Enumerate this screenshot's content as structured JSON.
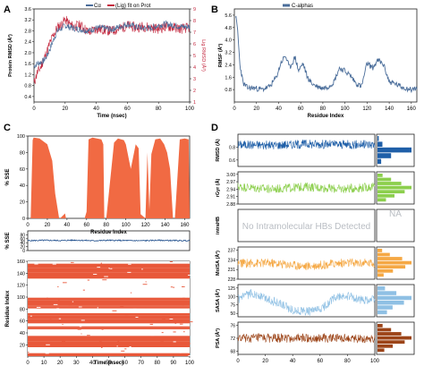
{
  "figure": {
    "panels": {
      "A": "A",
      "B": "B",
      "C": "C",
      "D": "D"
    }
  },
  "chart_data": [
    {
      "id": "A",
      "type": "line",
      "title": "",
      "xlabel": "Time (nsec)",
      "ylabel": "Protein RMSD (Å²)",
      "ylabel_right": "Lig RMSD (Å²)",
      "xlim": [
        0,
        100
      ],
      "ylim": [
        0.2,
        3.6
      ],
      "ylim_right": [
        1,
        9
      ],
      "xticks": [
        "0",
        "20",
        "40",
        "60",
        "80",
        "100"
      ],
      "yticks": [
        "0.4",
        "0.8",
        "1.2",
        "1.6",
        "2.0",
        "2.4",
        "2.8",
        "3.2",
        "3.6"
      ],
      "yticks_right": [
        "1",
        "2",
        "3",
        "4",
        "5",
        "6",
        "7",
        "8",
        "9"
      ],
      "legend": [
        "Cα",
        "(Lig) fit on Prot"
      ],
      "legend_position": "top",
      "colors": {
        "ca": "#4a6d9a",
        "lig": "#c4283f"
      },
      "series": [
        {
          "name": "Cα",
          "axis": "left",
          "x": [
            0,
            2,
            4,
            6,
            8,
            10,
            12,
            15,
            18,
            20,
            22,
            25,
            30,
            35,
            40,
            45,
            50,
            55,
            60,
            65,
            70,
            75,
            80,
            85,
            90,
            95,
            100
          ],
          "values": [
            1.5,
            1.6,
            1.65,
            1.7,
            1.85,
            2.1,
            2.4,
            2.8,
            2.9,
            3.0,
            2.95,
            2.9,
            2.85,
            2.8,
            2.9,
            2.9,
            2.85,
            2.95,
            3.05,
            2.95,
            2.9,
            2.9,
            3.0,
            3.05,
            3.0,
            2.95,
            2.95
          ]
        },
        {
          "name": "(Lig) fit on Prot",
          "axis": "right",
          "x": [
            0,
            2,
            4,
            6,
            8,
            10,
            12,
            15,
            18,
            20,
            22,
            25,
            30,
            35,
            40,
            45,
            50,
            55,
            60,
            65,
            70,
            75,
            80,
            85,
            90,
            95,
            100
          ],
          "values": [
            2.6,
            3.5,
            3.9,
            4.6,
            5.2,
            6.0,
            6.6,
            7.4,
            7.7,
            8.1,
            7.8,
            7.5,
            7.6,
            7.0,
            7.3,
            7.2,
            7.1,
            7.3,
            7.6,
            7.4,
            7.5,
            7.4,
            7.3,
            7.5,
            7.4,
            7.3,
            7.4
          ]
        }
      ]
    },
    {
      "id": "B",
      "type": "line",
      "title": "",
      "xlabel": "Residue Index",
      "ylabel": "RMSF (Å²)",
      "xlim": [
        0,
        165
      ],
      "ylim": [
        0,
        6
      ],
      "xticks": [
        "0",
        "20",
        "40",
        "60",
        "80",
        "100",
        "120",
        "140",
        "160"
      ],
      "yticks": [
        "0.8",
        "1.6",
        "2.4",
        "3.2",
        "4.0",
        "4.8",
        "5.6"
      ],
      "legend": [
        "C-alphas"
      ],
      "legend_position": "top",
      "colors": {
        "line": "#4a6d9a"
      },
      "series": [
        {
          "name": "C-alphas",
          "x": [
            1,
            3,
            5,
            8,
            12,
            18,
            25,
            32,
            38,
            42,
            46,
            50,
            55,
            58,
            62,
            66,
            70,
            75,
            80,
            85,
            90,
            95,
            100,
            105,
            110,
            115,
            120,
            125,
            130,
            135,
            140,
            145,
            150,
            155,
            160,
            165
          ],
          "values": [
            5.6,
            4.6,
            2.4,
            1.2,
            0.9,
            0.9,
            0.8,
            1.0,
            1.6,
            2.5,
            3.0,
            2.2,
            2.9,
            2.0,
            2.5,
            1.6,
            1.2,
            1.0,
            0.9,
            1.0,
            1.3,
            2.2,
            2.0,
            1.7,
            1.2,
            1.0,
            2.5,
            2.2,
            2.7,
            2.4,
            1.3,
            1.2,
            1.0,
            0.9,
            0.8,
            0.9
          ]
        }
      ]
    },
    {
      "id": "C-top",
      "type": "area",
      "title": "",
      "xlabel": "Residue Index",
      "ylabel": "% SSE",
      "xlim": [
        0,
        165
      ],
      "ylim": [
        0,
        100
      ],
      "xticks": [
        "0",
        "20",
        "40",
        "60",
        "80",
        "100",
        "120",
        "140",
        "160"
      ],
      "yticks": [
        "0",
        "20",
        "40",
        "60",
        "80",
        "100"
      ],
      "colors": {
        "fill": "#f16a43"
      },
      "series": [
        {
          "name": "",
          "x": [
            0,
            3,
            5,
            6,
            12,
            20,
            25,
            28,
            32,
            33,
            38,
            39,
            58,
            60,
            62,
            66,
            75,
            77,
            78,
            80,
            88,
            92,
            98,
            100,
            105,
            110,
            113,
            115,
            120,
            122,
            124,
            126,
            130,
            135,
            139,
            142,
            145,
            148,
            150,
            155,
            160,
            164,
            165
          ],
          "values": [
            0,
            0,
            95,
            98,
            97,
            90,
            70,
            30,
            0,
            0,
            6,
            0,
            0,
            8,
            96,
            98,
            96,
            90,
            0,
            0,
            92,
            97,
            95,
            90,
            60,
            90,
            85,
            5,
            0,
            80,
            10,
            78,
            96,
            97,
            90,
            80,
            60,
            0,
            0,
            96,
            97,
            96,
            0
          ]
        }
      ]
    },
    {
      "id": "C-mid",
      "type": "line",
      "title": "",
      "xlabel": "",
      "ylabel": "% SSE",
      "xlim": [
        0,
        100
      ],
      "ylim": [
        0,
        100
      ],
      "yticks": [
        "0",
        "20",
        "40",
        "60",
        "80"
      ],
      "colors": {
        "line": "#1f4e8c"
      },
      "series": [
        {
          "name": "",
          "x": [
            0,
            10,
            20,
            30,
            40,
            50,
            60,
            70,
            80,
            90,
            100
          ],
          "values": [
            50,
            52,
            51,
            53,
            50,
            52,
            51,
            50,
            52,
            51,
            50
          ]
        }
      ]
    },
    {
      "id": "C-bottom",
      "type": "heatmap",
      "title": "",
      "xlabel": "Time (nsec)",
      "ylabel": "Residue Index",
      "xlim": [
        0,
        100
      ],
      "ylim": [
        1,
        160
      ],
      "xticks": [
        "0",
        "10",
        "20",
        "30",
        "40",
        "50",
        "60",
        "70",
        "80",
        "90",
        "100"
      ],
      "yticks": [
        "20",
        "40",
        "60",
        "80",
        "100",
        "120",
        "140",
        "160"
      ],
      "colors": {
        "ssu": "#e8583a",
        "bg": "#ffffff"
      },
      "series": [
        {
          "name": "",
          "x": [
            2,
            5,
            12,
            20,
            25,
            30,
            38,
            40,
            58,
            62,
            66,
            75,
            77,
            80,
            88,
            92,
            98,
            100,
            105,
            110,
            113,
            115,
            120,
            126,
            130,
            135,
            139,
            145,
            150,
            155,
            160
          ],
          "values": [
            0,
            1,
            1,
            1,
            1,
            0,
            0,
            0,
            0,
            1,
            1,
            1,
            1,
            0,
            1,
            1,
            1,
            1,
            0,
            1,
            1,
            0,
            0,
            1,
            1,
            1,
            1,
            0,
            0,
            1,
            1
          ]
        }
      ]
    },
    {
      "id": "D-rmsd",
      "type": "line",
      "ylabel": "RMSD (Å)",
      "xlim": [
        0,
        100
      ],
      "ylim": [
        0.5,
        1.0
      ],
      "yticks": [
        "0.6",
        "0.8"
      ],
      "colors": {
        "line": "#1f5fa8"
      },
      "series": [
        {
          "name": "",
          "x": [
            0,
            25,
            50,
            75,
            100
          ],
          "values": [
            0.84,
            0.83,
            0.85,
            0.84,
            0.84
          ]
        }
      ],
      "histogram": [
        2,
        8,
        55,
        22,
        6
      ]
    },
    {
      "id": "D-rgyr",
      "type": "line",
      "ylabel": "rGyr (Å)",
      "xlim": [
        0,
        100
      ],
      "ylim": [
        2.88,
        3.01
      ],
      "yticks": [
        "2.88",
        "2.91",
        "2.94",
        "2.97",
        "3.00"
      ],
      "colors": {
        "line": "#8ccf4d"
      },
      "series": [
        {
          "name": "",
          "x": [
            0,
            25,
            50,
            75,
            100
          ],
          "values": [
            2.95,
            2.94,
            2.95,
            2.94,
            2.95
          ]
        }
      ],
      "histogram": [
        3,
        8,
        14,
        20,
        16,
        10,
        5
      ]
    },
    {
      "id": "D-intrahb",
      "type": "line",
      "ylabel": "intraHB",
      "annotation": "No Intramolecular HBs Detected",
      "side_annotation": "NA",
      "series": []
    },
    {
      "id": "D-molsa",
      "type": "line",
      "ylabel": "MolSA (Å²)",
      "xlim": [
        0,
        100
      ],
      "ylim": [
        228,
        238
      ],
      "yticks": [
        "228",
        "231",
        "234",
        "237"
      ],
      "colors": {
        "line": "#f5a844"
      },
      "series": [
        {
          "name": "",
          "x": [
            0,
            25,
            50,
            75,
            100
          ],
          "values": [
            233,
            233,
            232,
            233,
            233
          ]
        }
      ],
      "histogram": [
        3,
        8,
        16,
        22,
        18,
        10,
        4
      ]
    },
    {
      "id": "D-sasa",
      "type": "line",
      "ylabel": "SASA (Å²)",
      "xlim": [
        0,
        100
      ],
      "ylim": [
        40,
        135
      ],
      "yticks": [
        "50",
        "75",
        "100",
        "125"
      ],
      "colors": {
        "line": "#8fc0e4"
      },
      "series": [
        {
          "name": "",
          "x": [
            0,
            10,
            20,
            30,
            40,
            50,
            60,
            70,
            80,
            90,
            100
          ],
          "values": [
            90,
            110,
            95,
            80,
            60,
            55,
            60,
            95,
            100,
            90,
            92
          ]
        }
      ],
      "histogram": [
        4,
        10,
        18,
        14,
        8,
        5
      ]
    },
    {
      "id": "D-psa",
      "type": "line",
      "ylabel": "PSA (Å²)",
      "xlim": [
        0,
        100
      ],
      "ylim": [
        67,
        77
      ],
      "yticks": [
        "68",
        "72",
        "76"
      ],
      "colors": {
        "line": "#9c4418"
      },
      "series": [
        {
          "name": "",
          "x": [
            0,
            25,
            50,
            75,
            100
          ],
          "values": [
            72,
            72,
            72,
            72,
            72
          ]
        }
      ],
      "histogram": [
        3,
        8,
        14,
        20,
        16,
        9,
        4
      ]
    }
  ],
  "panel_d_xlabel": "Time (nsec)",
  "panel_d_xticks": [
    "0",
    "20",
    "40",
    "60",
    "80",
    "100"
  ]
}
